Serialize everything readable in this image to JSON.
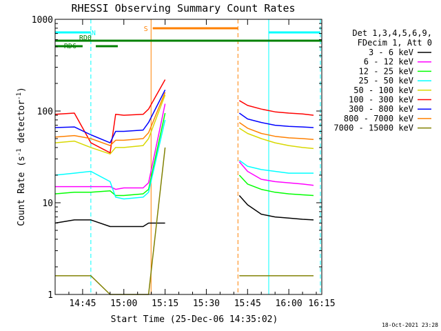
{
  "footer": {
    "timestamp": "18-Oct-2021 23:28"
  },
  "chart_data": {
    "type": "line",
    "title": "RHESSI Observing Summary Count Rates",
    "xlabel": "Start Time (25-Dec-06 14:35:02)",
    "ylabel_main": "Count Rate (s",
    "ylabel_sup1": "-1",
    "ylabel_mid": " detector",
    "ylabel_sup2": "-1",
    "ylabel_end": ")",
    "yscale": "log",
    "ylim": [
      1,
      1000
    ],
    "xlim_minutes": [
      0,
      97
    ],
    "x_ticks": [
      {
        "minute": 10,
        "label": "14:45"
      },
      {
        "minute": 25,
        "label": "15:00"
      },
      {
        "minute": 40,
        "label": "15:15"
      },
      {
        "minute": 55,
        "label": "15:30"
      },
      {
        "minute": 70,
        "label": "15:45"
      },
      {
        "minute": 85,
        "label": "16:00"
      },
      {
        "minute": 100,
        "label": "16:15"
      }
    ],
    "y_ticks": [
      {
        "value": 1,
        "label": "1"
      },
      {
        "value": 10,
        "label": "10"
      },
      {
        "value": 100,
        "label": "100"
      },
      {
        "value": 1000,
        "label": "1000"
      }
    ],
    "legend": {
      "placement": "right",
      "header": [
        "Det 1,3,4,5,6,9,",
        "FDecim 1, Att 0"
      ]
    },
    "gaps_minutes": [
      [
        34,
        67
      ]
    ],
    "series": [
      {
        "name": "3 - 6 keV",
        "color": "#000000",
        "points": [
          [
            0,
            6.0
          ],
          [
            7,
            6.5
          ],
          [
            13,
            6.5
          ],
          [
            20,
            5.5
          ],
          [
            22,
            5.5
          ],
          [
            25,
            5.5
          ],
          [
            32,
            5.5
          ],
          [
            34,
            6.0
          ],
          [
            40,
            6.0
          ],
          [
            67,
            12.0
          ],
          [
            70,
            9.5
          ],
          [
            75,
            7.5
          ],
          [
            80,
            7.0
          ],
          [
            85,
            6.8
          ],
          [
            90,
            6.6
          ],
          [
            94,
            6.5
          ]
        ]
      },
      {
        "name": "6 - 12 keV",
        "color": "#ff00ff",
        "points": [
          [
            0,
            15.0
          ],
          [
            7,
            15.0
          ],
          [
            13,
            15.0
          ],
          [
            20,
            15.0
          ],
          [
            22,
            14.0
          ],
          [
            25,
            14.5
          ],
          [
            32,
            14.5
          ],
          [
            34,
            16.5
          ],
          [
            40,
            120
          ],
          [
            67,
            28.0
          ],
          [
            70,
            22.0
          ],
          [
            75,
            18.0
          ],
          [
            80,
            17.0
          ],
          [
            85,
            16.5
          ],
          [
            90,
            16.0
          ],
          [
            94,
            15.5
          ]
        ]
      },
      {
        "name": "12 - 25 keV",
        "color": "#00ff00",
        "points": [
          [
            0,
            12.5
          ],
          [
            7,
            13.0
          ],
          [
            13,
            13.0
          ],
          [
            20,
            13.5
          ],
          [
            22,
            12.0
          ],
          [
            25,
            12.0
          ],
          [
            32,
            12.5
          ],
          [
            34,
            14.0
          ],
          [
            40,
            95
          ],
          [
            67,
            20.0
          ],
          [
            70,
            16.0
          ],
          [
            75,
            14.0
          ],
          [
            80,
            13.0
          ],
          [
            85,
            12.5
          ],
          [
            90,
            12.2
          ],
          [
            94,
            12.0
          ]
        ]
      },
      {
        "name": "25 - 50 keV",
        "color": "#00ffff",
        "points": [
          [
            0,
            20.0
          ],
          [
            7,
            21.0
          ],
          [
            13,
            22.0
          ],
          [
            20,
            17.0
          ],
          [
            22,
            11.5
          ],
          [
            25,
            11.0
          ],
          [
            32,
            11.5
          ],
          [
            34,
            13.0
          ],
          [
            40,
            80
          ],
          [
            67,
            29.0
          ],
          [
            70,
            25.0
          ],
          [
            75,
            23.0
          ],
          [
            80,
            22.0
          ],
          [
            85,
            21.0
          ],
          [
            90,
            21.0
          ],
          [
            94,
            21.0
          ]
        ]
      },
      {
        "name": "50 - 100 keV",
        "color": "#d8d800",
        "points": [
          [
            0,
            45.0
          ],
          [
            7,
            47.0
          ],
          [
            13,
            40.0
          ],
          [
            20,
            34.0
          ],
          [
            22,
            40.0
          ],
          [
            25,
            40.0
          ],
          [
            32,
            42.0
          ],
          [
            34,
            50.0
          ],
          [
            40,
            150
          ],
          [
            67,
            65.0
          ],
          [
            70,
            57.0
          ],
          [
            75,
            50.0
          ],
          [
            80,
            45.0
          ],
          [
            85,
            42.0
          ],
          [
            90,
            40.0
          ],
          [
            94,
            39.0
          ]
        ]
      },
      {
        "name": "100 - 300 keV",
        "color": "#ff0000",
        "points": [
          [
            0,
            92.0
          ],
          [
            7,
            95.0
          ],
          [
            13,
            45.0
          ],
          [
            20,
            35.0
          ],
          [
            22,
            92.0
          ],
          [
            25,
            90.0
          ],
          [
            32,
            92.0
          ],
          [
            34,
            105
          ],
          [
            40,
            220
          ],
          [
            67,
            130
          ],
          [
            70,
            115
          ],
          [
            75,
            105
          ],
          [
            80,
            98.0
          ],
          [
            85,
            95.0
          ],
          [
            90,
            93.0
          ],
          [
            94,
            90.0
          ]
        ]
      },
      {
        "name": "300 - 800 keV",
        "color": "#0000ff",
        "points": [
          [
            0,
            66.0
          ],
          [
            7,
            67.0
          ],
          [
            13,
            55.0
          ],
          [
            20,
            45.0
          ],
          [
            22,
            60.0
          ],
          [
            25,
            60.0
          ],
          [
            32,
            62.0
          ],
          [
            34,
            75.0
          ],
          [
            40,
            170
          ],
          [
            67,
            95.0
          ],
          [
            70,
            82.0
          ],
          [
            75,
            75.0
          ],
          [
            80,
            70.0
          ],
          [
            85,
            68.0
          ],
          [
            90,
            67.0
          ],
          [
            94,
            66.0
          ]
        ]
      },
      {
        "name": "800 - 7000 keV",
        "color": "#ff8000",
        "points": [
          [
            0,
            52.0
          ],
          [
            7,
            54.0
          ],
          [
            13,
            50.0
          ],
          [
            20,
            42.0
          ],
          [
            22,
            48.0
          ],
          [
            25,
            48.0
          ],
          [
            32,
            50.0
          ],
          [
            34,
            58.0
          ],
          [
            40,
            160
          ],
          [
            67,
            75.0
          ],
          [
            70,
            65.0
          ],
          [
            75,
            57.0
          ],
          [
            80,
            53.0
          ],
          [
            85,
            51.0
          ],
          [
            90,
            50.0
          ],
          [
            94,
            49.0
          ]
        ]
      },
      {
        "name": "7000 - 15000 keV",
        "color": "#808000",
        "points": [
          [
            0,
            1.6
          ],
          [
            7,
            1.6
          ],
          [
            13,
            1.6
          ],
          [
            20,
            1.0
          ],
          [
            25,
            1.0
          ],
          [
            32,
            1.0
          ],
          [
            34,
            1.0
          ],
          [
            40,
            40
          ],
          [
            67,
            1.6
          ],
          [
            75,
            1.6
          ],
          [
            85,
            1.6
          ],
          [
            94,
            1.6
          ]
        ]
      }
    ],
    "vertical_markers": [
      {
        "minute": 0,
        "color": "#00ffff",
        "style": "solid"
      },
      {
        "minute": 13,
        "color": "#00ffff",
        "style": "dashed"
      },
      {
        "minute": 34.9,
        "color": "#ff8000",
        "style": "solid"
      },
      {
        "minute": 66.5,
        "color": "#ff8000",
        "style": "dashed"
      },
      {
        "minute": 77.7,
        "color": "#00ffff",
        "style": "solid"
      },
      {
        "minute": 96.5,
        "color": "#00ffff",
        "style": "dashed"
      }
    ],
    "flag_bars": [
      {
        "label": "N",
        "color": "#00ffff",
        "segments": [
          [
            0,
            13
          ],
          [
            77.7,
            96.5
          ]
        ],
        "label_minute": 14
      },
      {
        "label": "S",
        "color": "#ff8000",
        "segments": [
          [
            35.5,
            66.5
          ]
        ],
        "label_minute": 33
      },
      {
        "label": "RD0",
        "color": "#008000",
        "segments": [
          [
            0,
            97
          ]
        ],
        "label_minute": 11
      },
      {
        "label": "RD6",
        "color": "#008000",
        "segments": [
          [
            0,
            10
          ],
          [
            14.8,
            22.8
          ]
        ],
        "label_minute": 5.5
      }
    ]
  }
}
